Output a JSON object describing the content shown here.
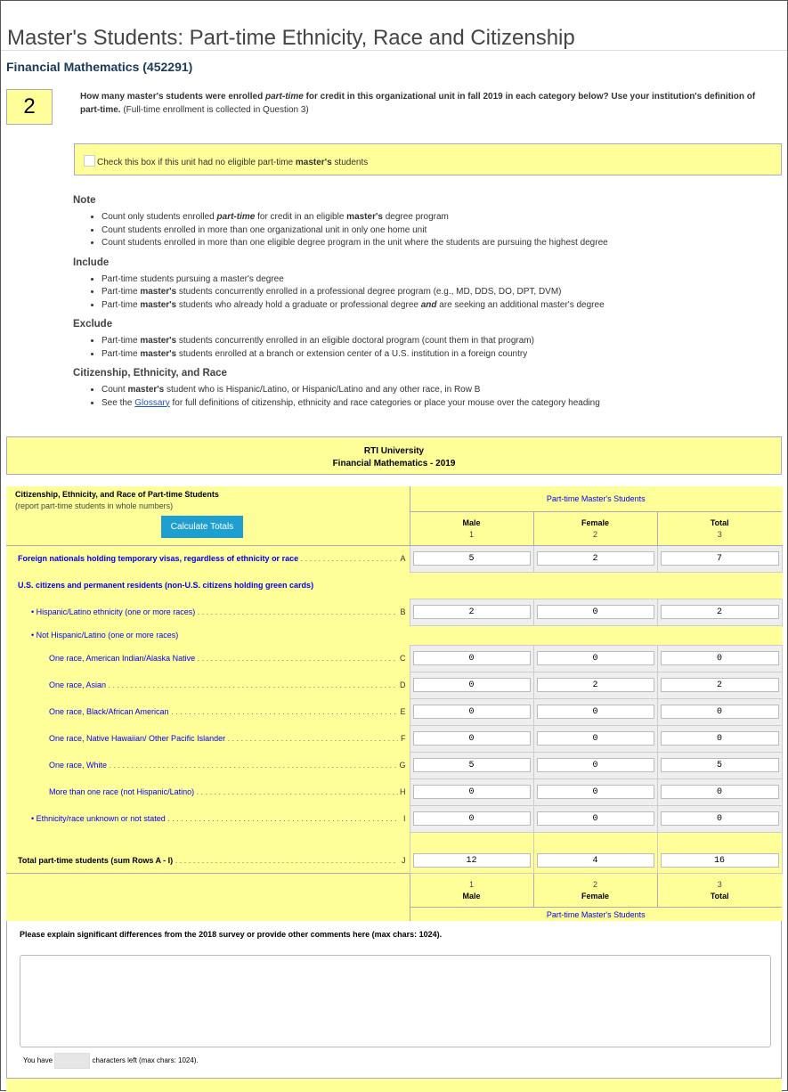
{
  "page_title": "Master's Students: Part-time Ethnicity, Race and Citizenship",
  "unit_name": "Financial Mathematics (452291)",
  "question": {
    "number": "2",
    "text_1": "How many master's students were enrolled ",
    "text_italic": "part-time",
    "text_2": " for credit in this organizational unit in fall 2019 in each category below? Use your institution's definition of part-time.",
    "text_note": " (Full-time enrollment is collected in Question 3)"
  },
  "no_eligible_checkbox": {
    "label_1": "Check this box if this unit had no eligible part-time ",
    "label_bold": "master's",
    "label_2": " students",
    "checked": false
  },
  "notes": [
    {
      "heading": "Note",
      "items": [
        [
          [
            "Count only students enrolled ",
            ""
          ],
          [
            "part-time",
            "bi"
          ],
          [
            " for credit in an eligible ",
            ""
          ],
          [
            "master's",
            "b"
          ],
          [
            " degree program",
            ""
          ]
        ],
        [
          [
            "Count students enrolled in more than one organizational unit in only one home unit",
            ""
          ]
        ],
        [
          [
            "Count students enrolled in more than one eligible degree program in the unit where the students are pursuing the highest degree",
            ""
          ]
        ]
      ]
    },
    {
      "heading": "Include",
      "items": [
        [
          [
            "Part-time students pursuing a master's degree",
            ""
          ]
        ],
        [
          [
            "Part-time ",
            ""
          ],
          [
            "master's",
            "b"
          ],
          [
            " students concurrently enrolled in a professional degree program (e.g., MD, DDS, DO, DPT, DVM)",
            ""
          ]
        ],
        [
          [
            "Part-time ",
            ""
          ],
          [
            "master's",
            "b"
          ],
          [
            " students who already hold a graduate or professional degree ",
            ""
          ],
          [
            "and",
            "bi"
          ],
          [
            " are seeking an additional master's degree",
            ""
          ]
        ]
      ]
    },
    {
      "heading": "Exclude",
      "items": [
        [
          [
            "Part-time ",
            ""
          ],
          [
            "master's",
            "b"
          ],
          [
            " students concurrently enrolled in an eligible doctoral program (count them in that program)",
            ""
          ]
        ],
        [
          [
            "Part-time ",
            ""
          ],
          [
            "master's",
            "b"
          ],
          [
            " students enrolled at a branch or extension center of a U.S. institution in a foreign country",
            ""
          ]
        ]
      ]
    },
    {
      "heading": "Citizenship, Ethnicity, and Race",
      "items": [
        [
          [
            "Count ",
            ""
          ],
          [
            "master's",
            "b"
          ],
          [
            " student who is Hispanic/Latino, or Hispanic/Latino and any other race, in Row B",
            ""
          ]
        ],
        [
          [
            "See the ",
            ""
          ],
          [
            "Glossary",
            "link"
          ],
          [
            " for full definitions of citizenship, ethnicity and race categories or place your mouse over the category heading",
            ""
          ]
        ]
      ]
    }
  ],
  "table_header": {
    "institution": "RTI University",
    "program_year": "Financial Mathematics - 2019"
  },
  "table": {
    "row_header_title": "Citizenship, Ethnicity, and Race of Part-time Students",
    "row_header_sub": "(report part-time students in whole numbers)",
    "calculate_button": "Calculate Totals",
    "group_label": "Part-time Master's Students",
    "columns": [
      {
        "label": "Male",
        "num": "1"
      },
      {
        "label": "Female",
        "num": "2"
      },
      {
        "label": "Total",
        "num": "3"
      }
    ],
    "rows": [
      {
        "label": "Foreign nationals holding temporary visas, regardless of ethnicity or race",
        "letter": "A",
        "values": [
          "5",
          "2",
          "7"
        ],
        "style": "bold"
      },
      {
        "label": "U.S. citizens and permanent residents (non-U.S. citizens holding green cards)",
        "style": "section"
      },
      {
        "label": "Hispanic/Latino ethnicity (one or more races)",
        "letter": "B",
        "values": [
          "2",
          "0",
          "2"
        ],
        "style": "bullet"
      },
      {
        "label": "Not Hispanic/Latino (one or more races)",
        "style": "bullet-head"
      },
      {
        "label": "One race, American Indian/Alaska Native",
        "letter": "C",
        "values": [
          "0",
          "0",
          "0"
        ],
        "style": "indent"
      },
      {
        "label": "One race, Asian",
        "letter": "D",
        "values": [
          "0",
          "2",
          "2"
        ],
        "style": "indent"
      },
      {
        "label": "One race, Black/African American",
        "letter": "E",
        "values": [
          "0",
          "0",
          "0"
        ],
        "style": "indent"
      },
      {
        "label": "One race, Native Hawaiian/ Other Pacific Islander",
        "letter": "F",
        "values": [
          "0",
          "0",
          "0"
        ],
        "style": "indent"
      },
      {
        "label": "One race, White",
        "letter": "G",
        "values": [
          "5",
          "0",
          "5"
        ],
        "style": "indent"
      },
      {
        "label": "More than one race (not Hispanic/Latino)",
        "letter": "H",
        "values": [
          "0",
          "0",
          "0"
        ],
        "style": "indent"
      },
      {
        "label": "Ethnicity/race unknown or not stated",
        "letter": "I",
        "values": [
          "0",
          "0",
          "0"
        ],
        "style": "bullet"
      },
      {
        "label": "Total part-time students (sum Rows A - I)",
        "letter": "J",
        "values": [
          "12",
          "4",
          "16"
        ],
        "style": "total"
      }
    ]
  },
  "comments": {
    "prompt": "Please explain significant differences from the 2018 survey or provide other comments here (max chars: 1024).",
    "value": "",
    "chars_prefix": "You have",
    "chars_left": "",
    "chars_suffix": "characters left (max chars: 1024)."
  },
  "colors": {
    "yellow": "#ffff99",
    "link_blue": "#0000ee",
    "button": "#1e9fd0"
  }
}
